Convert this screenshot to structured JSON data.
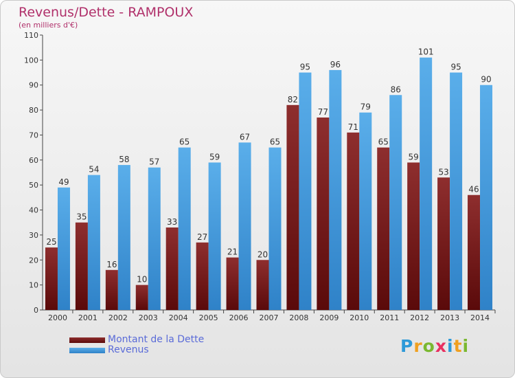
{
  "title": "Revenus/Dette - RAMPOUX",
  "subtitle": "(en milliers d'€)",
  "logo": {
    "letters": [
      "P",
      "r",
      "o",
      "x",
      "i",
      "t",
      "i"
    ],
    "colors": [
      "#2e9ad8",
      "#f0a020",
      "#7ab830",
      "#e83060",
      "#2e9ad8",
      "#f0a020",
      "#7ab830"
    ]
  },
  "colors": {
    "debt": "#7a1a1a",
    "revenue": "#4a9ee0",
    "title": "#b0306a",
    "legend_text": "#5a6bd8"
  },
  "legend": {
    "items": [
      {
        "label": "Montant de la Dette",
        "color": "#7a1a1a"
      },
      {
        "label": "Revenus",
        "color": "#4a9ee0"
      }
    ]
  },
  "chart_data": {
    "type": "bar",
    "title": "Revenus/Dette - RAMPOUX",
    "subtitle": "(en milliers d'€)",
    "categories": [
      "2000",
      "2001",
      "2002",
      "2003",
      "2004",
      "2005",
      "2006",
      "2007",
      "2008",
      "2009",
      "2010",
      "2011",
      "2012",
      "2013",
      "2014"
    ],
    "series": [
      {
        "name": "Montant de la Dette",
        "values": [
          25,
          35,
          16,
          10,
          33,
          27,
          21,
          20,
          82,
          77,
          71,
          65,
          59,
          53,
          46
        ]
      },
      {
        "name": "Revenus",
        "values": [
          49,
          54,
          58,
          57,
          65,
          59,
          67,
          65,
          95,
          96,
          79,
          86,
          101,
          95,
          90
        ]
      }
    ],
    "ylim": [
      0,
      110
    ],
    "yticks": [
      0,
      10,
      20,
      30,
      40,
      50,
      60,
      70,
      80,
      90,
      100,
      110
    ],
    "grid": false,
    "data_labels": true,
    "legend_position": "bottom-left"
  }
}
